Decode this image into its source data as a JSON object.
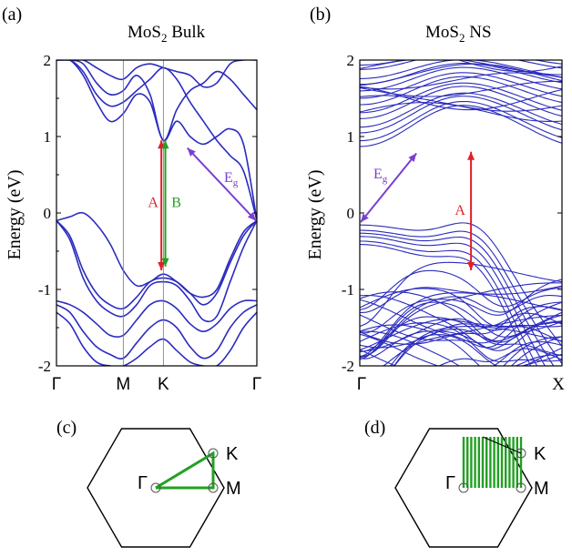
{
  "chart_data": [
    {
      "panel": "(a)",
      "type": "line",
      "title_main": "MoS",
      "title_sub": "2",
      "title_rest": " Bulk",
      "ylabel": "Energy (eV)",
      "ylim": [
        -2,
        2
      ],
      "yticks": [
        "2",
        "1",
        "0",
        "-1",
        "-2"
      ],
      "xticks": [
        "Γ",
        "M",
        "K",
        "Γ"
      ],
      "xtick_positions": [
        0,
        0.5,
        0.8,
        1.5
      ],
      "xlim": [
        0,
        1.5
      ],
      "vlines": [
        0.5,
        0.8
      ],
      "band_color": "#2b2bbf",
      "series": [
        {
          "x": [
            0,
            0.1,
            0.2,
            0.3,
            0.4,
            0.5,
            0.6,
            0.7,
            0.8,
            0.9,
            1.0,
            1.1,
            1.2,
            1.3,
            1.4,
            1.5
          ],
          "y": [
            -0.1,
            -0.3,
            -0.75,
            -1.05,
            -1.2,
            -1.25,
            -1.1,
            -0.9,
            -0.85,
            -0.9,
            -1.05,
            -1.2,
            -1.05,
            -0.65,
            -0.3,
            -0.1
          ]
        },
        {
          "x": [
            0,
            0.1,
            0.2,
            0.3,
            0.4,
            0.5,
            0.6,
            0.7,
            0.8,
            0.9,
            1.0,
            1.1,
            1.2,
            1.3,
            1.4,
            1.5
          ],
          "y": [
            -0.1,
            -0.35,
            -0.85,
            -1.15,
            -1.3,
            -1.35,
            -1.2,
            -0.95,
            -0.9,
            -0.95,
            -1.15,
            -1.4,
            -1.35,
            -0.9,
            -0.45,
            -0.1
          ]
        },
        {
          "x": [
            0,
            0.1,
            0.2,
            0.3,
            0.4,
            0.5,
            0.6,
            0.7,
            0.8,
            0.9,
            1.0,
            1.1,
            1.2,
            1.3,
            1.4,
            1.5
          ],
          "y": [
            -1.15,
            -1.2,
            -1.3,
            -1.45,
            -1.6,
            -1.6,
            -1.4,
            -1.2,
            -1.15,
            -1.25,
            -1.45,
            -1.55,
            -1.45,
            -1.25,
            -1.15,
            -1.15
          ]
        },
        {
          "x": [
            0,
            0.1,
            0.2,
            0.3,
            0.4,
            0.5,
            0.6,
            0.7,
            0.8,
            0.9,
            1.0,
            1.1,
            1.2,
            1.3,
            1.4,
            1.5
          ],
          "y": [
            -1.2,
            -1.3,
            -1.55,
            -1.75,
            -1.85,
            -1.9,
            -1.7,
            -1.5,
            -1.4,
            -1.5,
            -1.75,
            -1.9,
            -1.8,
            -1.5,
            -1.3,
            -1.2
          ]
        },
        {
          "x": [
            0,
            0.1,
            0.2,
            0.3,
            0.4,
            0.5,
            0.6,
            0.7,
            0.8,
            0.9,
            1.0,
            1.1,
            1.2,
            1.3,
            1.4,
            1.5
          ],
          "y": [
            -1.3,
            -1.45,
            -1.75,
            -1.95,
            -2.0,
            -2.0,
            -1.9,
            -1.75,
            -1.65,
            -1.8,
            -1.95,
            -2.0,
            -2.0,
            -1.8,
            -1.5,
            -1.3
          ]
        },
        {
          "x": [
            0,
            0.1,
            0.2,
            0.3,
            0.4,
            0.5,
            0.6,
            0.7,
            0.8,
            0.9,
            1.0,
            1.1,
            1.2,
            1.3,
            1.4,
            1.5
          ],
          "y": [
            -0.1,
            -0.05,
            0.0,
            -0.15,
            -0.4,
            -0.75,
            -0.95,
            -0.9,
            -0.8,
            -0.9,
            -1.05,
            -1.1,
            -1.0,
            -0.6,
            -0.25,
            -0.1
          ]
        },
        {
          "x": [
            0,
            0.1,
            0.2,
            0.3,
            0.4,
            0.5,
            0.6,
            0.7,
            0.8,
            0.9,
            1.0,
            1.1,
            1.2,
            1.3,
            1.4,
            1.5
          ],
          "y": [
            2.0,
            2.0,
            1.85,
            1.55,
            1.4,
            1.45,
            1.6,
            1.75,
            1.9,
            1.75,
            1.45,
            1.2,
            0.95,
            0.75,
            0.55,
            -0.1
          ]
        },
        {
          "x": [
            0,
            0.1,
            0.2,
            0.3,
            0.4,
            0.5,
            0.6,
            0.7,
            0.8,
            0.9,
            1.0,
            1.1,
            1.2,
            1.3,
            1.4,
            1.5
          ],
          "y": [
            2.0,
            2.0,
            1.8,
            1.45,
            1.2,
            1.3,
            1.55,
            1.45,
            0.95,
            1.2,
            1.0,
            0.9,
            1.0,
            1.1,
            0.9,
            -0.1
          ]
        },
        {
          "x": [
            0,
            0.1,
            0.2,
            0.3,
            0.4,
            0.5,
            0.6,
            0.7,
            0.8,
            0.9,
            1.0,
            1.1,
            1.2,
            1.3,
            1.4,
            1.5
          ],
          "y": [
            2.0,
            2.0,
            1.95,
            1.7,
            1.55,
            1.6,
            1.8,
            1.55,
            0.95,
            1.35,
            1.6,
            1.7,
            1.85,
            1.75,
            1.55,
            1.35
          ]
        },
        {
          "x": [
            0,
            0.1,
            0.2,
            0.3,
            0.4,
            0.5,
            0.6,
            0.7,
            0.8,
            0.9,
            1.0,
            1.1,
            1.2,
            1.3,
            1.4,
            1.5
          ],
          "y": [
            2.0,
            2.0,
            2.0,
            1.9,
            1.8,
            1.75,
            1.9,
            1.95,
            1.9,
            1.85,
            1.8,
            1.65,
            1.7,
            1.95,
            2.0,
            2.0
          ]
        }
      ],
      "annotations": [
        {
          "label": "A",
          "color": "#e0202a",
          "from": [
            0.785,
            0.95
          ],
          "to": [
            0.785,
            -0.75
          ]
        },
        {
          "label": "B",
          "color": "#22a022",
          "from": [
            0.815,
            0.95
          ],
          "to": [
            0.815,
            -0.7
          ]
        },
        {
          "label": "E",
          "sub": "g",
          "color": "#7a3fd0",
          "from": [
            0.98,
            0.85
          ],
          "to": [
            1.5,
            -0.1
          ]
        }
      ]
    },
    {
      "panel": "(b)",
      "type": "line",
      "title_main": "MoS",
      "title_sub": "2",
      "title_rest": " NS",
      "ylabel": "Energy (eV)",
      "ylim": [
        -2,
        2
      ],
      "yticks": [
        "2",
        "1",
        "0",
        "-1",
        "-2"
      ],
      "xticks": [
        "Γ",
        "X"
      ],
      "xtick_positions": [
        0,
        1
      ],
      "xlim": [
        0,
        1
      ],
      "band_color": "#2b2bbf",
      "conduction_min": [
        0.55,
        0.85
      ],
      "valence_max": [
        0.0,
        -0.15
      ],
      "valence_second_max": [
        0.55,
        -0.75
      ],
      "annotations": [
        {
          "label": "A",
          "color": "#e0202a",
          "from": [
            0.55,
            0.8
          ],
          "to": [
            0.55,
            -0.75
          ]
        },
        {
          "label": "E",
          "sub": "g",
          "color": "#7a3fd0",
          "from": [
            0.28,
            0.78
          ],
          "to": [
            0.0,
            -0.12
          ]
        }
      ]
    }
  ],
  "panels": {
    "c_label": "(c)",
    "d_label": "(d)",
    "bz_points": {
      "gamma": "Γ",
      "k": "K",
      "m": "M"
    },
    "path_color": "#22a022"
  }
}
